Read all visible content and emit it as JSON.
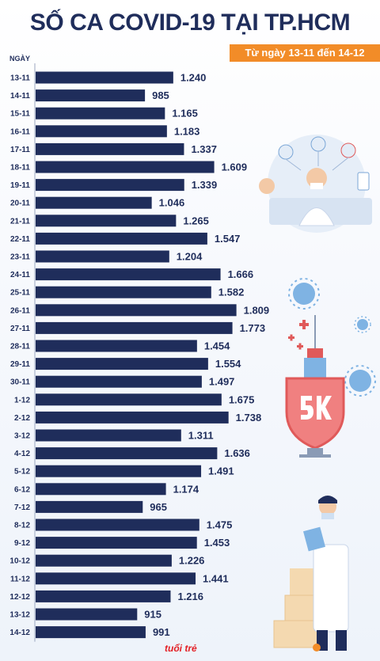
{
  "title": "SỐ CA COVID-19 TẠI TP.HCM",
  "subtitle": "Từ ngày 13-11 đến 14-12",
  "y_axis_label": "NGÀY",
  "logo": "tuổi trẻ",
  "colors": {
    "bar": "#1f2d5b",
    "title": "#1f2d5b",
    "accent": "#f28c28"
  },
  "chart_data": {
    "type": "bar",
    "orientation": "horizontal",
    "title": "SỐ CA COVID-19 TẠI TP.HCM",
    "subtitle": "Từ ngày 13-11 đến 14-12",
    "ylabel": "NGÀY",
    "xlim": [
      0,
      1850
    ],
    "grid": false,
    "categories": [
      "13-11",
      "14-11",
      "15-11",
      "16-11",
      "17-11",
      "18-11",
      "19-11",
      "20-11",
      "21-11",
      "22-11",
      "23-11",
      "24-11",
      "25-11",
      "26-11",
      "27-11",
      "28-11",
      "29-11",
      "30-11",
      "1-12",
      "2-12",
      "3-12",
      "4-12",
      "5-12",
      "6-12",
      "7-12",
      "8-12",
      "9-12",
      "10-12",
      "11-12",
      "12-12",
      "13-12",
      "14-12"
    ],
    "values": [
      1240,
      985,
      1165,
      1183,
      1337,
      1609,
      1339,
      1046,
      1265,
      1547,
      1204,
      1666,
      1582,
      1809,
      1773,
      1454,
      1554,
      1497,
      1675,
      1738,
      1311,
      1636,
      1491,
      1174,
      965,
      1475,
      1453,
      1226,
      1441,
      1216,
      915,
      991
    ],
    "value_labels": [
      "1.240",
      "985",
      "1.165",
      "1.183",
      "1.337",
      "1.609",
      "1.339",
      "1.046",
      "1.265",
      "1.547",
      "1.204",
      "1.666",
      "1.582",
      "1.809",
      "1.773",
      "1.454",
      "1.554",
      "1.497",
      "1.675",
      "1.738",
      "1.311",
      "1.636",
      "1.491",
      "1.174",
      "965",
      "1.475",
      "1.453",
      "1.226",
      "1.441",
      "1.216",
      "915",
      "991"
    ]
  }
}
